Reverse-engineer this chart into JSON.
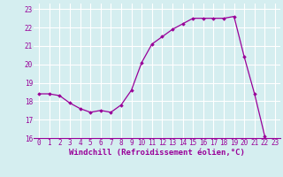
{
  "x": [
    0,
    1,
    2,
    3,
    4,
    5,
    6,
    7,
    8,
    9,
    10,
    11,
    12,
    13,
    14,
    15,
    16,
    17,
    18,
    19,
    20,
    21,
    22,
    23
  ],
  "y": [
    18.4,
    18.4,
    18.3,
    17.9,
    17.6,
    17.4,
    17.5,
    17.4,
    17.8,
    18.6,
    20.1,
    21.1,
    21.5,
    21.9,
    22.2,
    22.5,
    22.5,
    22.5,
    22.5,
    22.6,
    20.4,
    18.4,
    16.1,
    null
  ],
  "xlim": [
    -0.5,
    23.5
  ],
  "ylim": [
    16.0,
    23.3
  ],
  "yticks": [
    16,
    17,
    18,
    19,
    20,
    21,
    22,
    23
  ],
  "xticks": [
    0,
    1,
    2,
    3,
    4,
    5,
    6,
    7,
    8,
    9,
    10,
    11,
    12,
    13,
    14,
    15,
    16,
    17,
    18,
    19,
    20,
    21,
    22,
    23
  ],
  "xlabel": "Windchill (Refroidissement éolien,°C)",
  "line_color": "#990099",
  "bg_color": "#d5eef0",
  "grid_color": "#b0dde4",
  "marker_color": "#990099",
  "tick_fontsize": 5.5,
  "label_fontsize": 6.5
}
